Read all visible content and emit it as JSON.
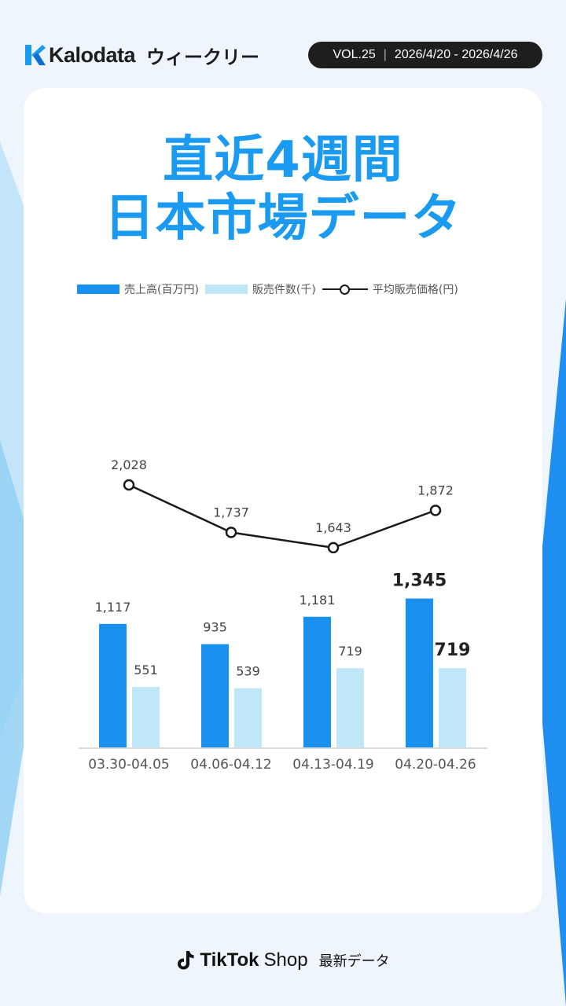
{
  "header": {
    "brand": "Kalodata",
    "subtitle": "ウィークリー",
    "vol": "VOL.25",
    "date_range": "2026/4/20 - 2026/4/26"
  },
  "title": {
    "line1": "直近4週間",
    "line2": "日本市場データ"
  },
  "colors": {
    "title": "#1a9af0",
    "sales": "#1890ee",
    "units": "#bfe7f8",
    "line": "#1a1a1a"
  },
  "chart_data": {
    "type": "bar",
    "categories": [
      "03.30-04.05",
      "04.06-04.12",
      "04.13-04.19",
      "04.20-04.26"
    ],
    "series": [
      {
        "name": "売上高(百万円)",
        "type": "bar",
        "values": [
          1117,
          935,
          1181,
          1345
        ],
        "labels": [
          "1,117",
          "935",
          "1,181",
          "1,345"
        ]
      },
      {
        "name": "販売件数(千)",
        "type": "bar",
        "values": [
          551,
          539,
          719,
          719
        ],
        "labels": [
          "551",
          "539",
          "719",
          "719"
        ]
      },
      {
        "name": "平均販売価格(円)",
        "type": "line",
        "values": [
          2028,
          1737,
          1643,
          1872
        ],
        "labels": [
          "2,028",
          "1,737",
          "1,643",
          "1,872"
        ]
      }
    ],
    "highlight_category_index": 3,
    "grid": false,
    "legend_position": "top"
  },
  "footer": {
    "brand": "TikTok",
    "shop": "Shop",
    "sub": "最新データ"
  }
}
